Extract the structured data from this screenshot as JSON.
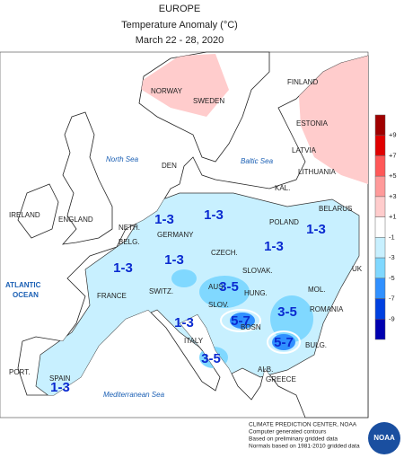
{
  "header": {
    "title": "EUROPE",
    "subtitle": "Temperature Anomaly (°C)",
    "dates": "March 22 - 28, 2020"
  },
  "countries": [
    "NORWAY",
    "SWEDEN",
    "FINLAND",
    "ESTONIA",
    "LATVIA",
    "LITHUANIA",
    "KAL.",
    "BELARUS",
    "DEN",
    "POLAND",
    "IRELAND",
    "ENGLAND",
    "NETH.",
    "BELG.",
    "GERMANY",
    "CZECH.",
    "SLOVAK.",
    "FRANCE",
    "SWITZ.",
    "AUS",
    "HUNG.",
    "SLOV.",
    "MOL.",
    "ROMANIA",
    "ITALY",
    "BOSN",
    "ALB.",
    "GREECE",
    "BULG.",
    "PORT.",
    "SPAIN",
    "UK"
  ],
  "seas": [
    "North Sea",
    "Baltic Sea",
    "ATLANTIC OCEAN",
    "Mediterranean Sea"
  ],
  "anomalies": [
    "1-3",
    "1-3",
    "1-3",
    "1-3",
    "1-3",
    "1-3",
    "1-3",
    "1-3",
    "3-5",
    "3-5",
    "3-5",
    "5-7",
    "5-7"
  ],
  "legend": {
    "labels": [
      "+9",
      "+7",
      "+5",
      "+3",
      "+1",
      "-1",
      "-3",
      "-5",
      "-7",
      "-9"
    ],
    "colors": [
      "#a00000",
      "#e00000",
      "#ff5858",
      "#ff9a9a",
      "#ffcccc",
      "#ffffff",
      "#c8f0ff",
      "#80d8ff",
      "#3090ff",
      "#0040e0",
      "#0000b0"
    ]
  },
  "footer": [
    "CLIMATE PREDICTION CENTER, NOAA",
    "Computer generated contours",
    "Based on preliminary gridded data",
    "Normals based on 1981-2010 gridded data"
  ],
  "logo": "NOAA"
}
